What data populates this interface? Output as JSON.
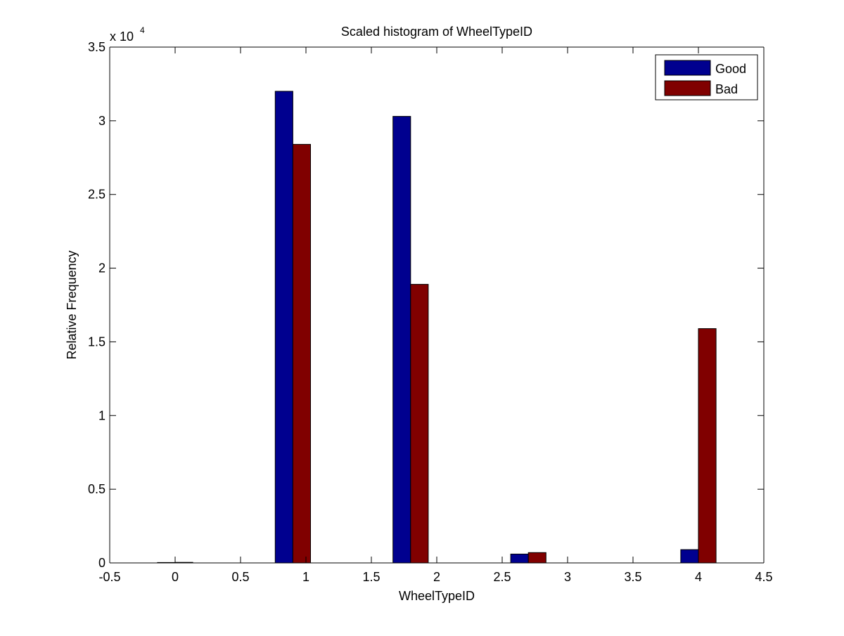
{
  "chart_data": {
    "type": "bar",
    "title": "Scaled histogram of WheelTypeID",
    "xlabel": "WheelTypeID",
    "ylabel": "Relative Frequency",
    "y_exponent_label": "x 10",
    "y_exponent_power": "4",
    "x_tick_labels": [
      "-0.5",
      "0",
      "0.5",
      "1",
      "1.5",
      "2",
      "2.5",
      "3",
      "3.5",
      "4",
      "4.5"
    ],
    "y_tick_labels": [
      "0",
      "0.5",
      "1",
      "1.5",
      "2",
      "2.5",
      "3",
      "3.5"
    ],
    "xlim": [
      -0.5,
      4.5
    ],
    "ylim": [
      0,
      35000
    ],
    "grid": false,
    "legend_position": "top-right",
    "bin_centers": [
      0,
      0.9,
      1.8,
      2.7,
      4
    ],
    "series": [
      {
        "name": "Good",
        "color": "#00008f",
        "values": [
          30,
          32000,
          30300,
          600,
          900
        ]
      },
      {
        "name": "Bad",
        "color": "#800000",
        "values": [
          40,
          28400,
          18900,
          700,
          15900
        ]
      }
    ]
  }
}
